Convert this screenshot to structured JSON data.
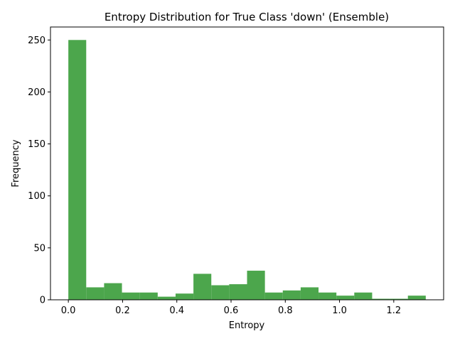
{
  "chart_data": {
    "type": "histogram",
    "title": "Entropy Distribution for True Class 'down' (Ensemble)",
    "xlabel": "Entropy",
    "ylabel": "Frequency",
    "bins": [
      0,
      0.0659,
      0.1318,
      0.1977,
      0.2636,
      0.3295,
      0.3954,
      0.4613,
      0.5272,
      0.5931,
      0.659,
      0.7249,
      0.7908,
      0.8567,
      0.9226,
      0.9885,
      1.0544,
      1.1203,
      1.1862,
      1.2521,
      1.318
    ],
    "values": [
      250,
      12,
      16,
      7,
      7,
      3,
      6,
      25,
      14,
      15,
      28,
      7,
      9,
      12,
      7,
      4,
      7,
      1,
      1,
      4
    ],
    "color": "#4ca64c",
    "xlim": [
      -0.0659,
      1.3839
    ],
    "ylim": [
      0,
      262.5
    ],
    "xticks": [
      {
        "value": 0,
        "label": "0.0"
      },
      0.2,
      0.4,
      0.6,
      0.8,
      {
        "value": 1,
        "label": "1.0"
      },
      1.2
    ],
    "yticks": [
      0,
      50,
      100,
      150,
      200,
      250
    ],
    "grid": false
  }
}
